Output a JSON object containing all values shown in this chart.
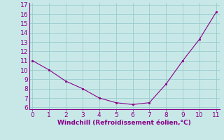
{
  "x": [
    0,
    1,
    2,
    3,
    4,
    5,
    6,
    7,
    8,
    9,
    10,
    11
  ],
  "y": [
    11.0,
    10.0,
    8.8,
    8.0,
    7.0,
    6.5,
    6.3,
    6.5,
    8.5,
    11.0,
    13.3,
    16.2
  ],
  "xlabel": "Windchill (Refroidissement éolien,°C)",
  "xlim": [
    -0.2,
    11.2
  ],
  "ylim": [
    5.8,
    17.2
  ],
  "yticks": [
    6,
    7,
    8,
    9,
    10,
    11,
    12,
    13,
    14,
    15,
    16,
    17
  ],
  "xticks": [
    0,
    1,
    2,
    3,
    4,
    5,
    6,
    7,
    8,
    9,
    10,
    11
  ],
  "line_color": "#880088",
  "marker_color": "#880088",
  "bg_color": "#C8E8E8",
  "grid_color": "#99CCCC",
  "xlabel_color": "#880088",
  "xlabel_fontsize": 6.5,
  "tick_fontsize": 6.5,
  "tick_color": "#880088",
  "spine_color": "#880088"
}
